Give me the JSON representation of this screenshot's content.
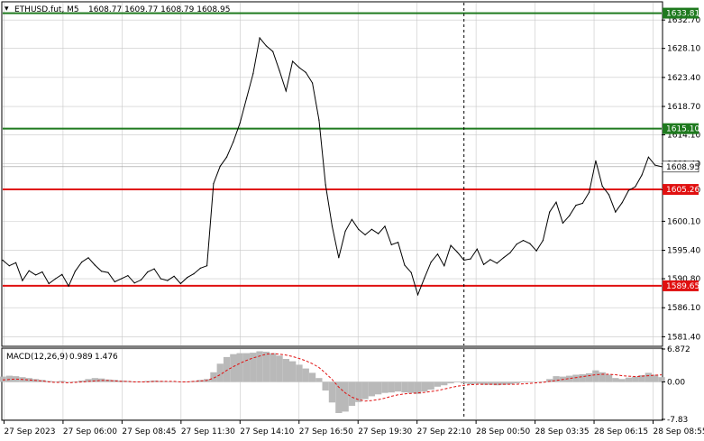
{
  "header": {
    "symbol_label": "ETHUSD.fut, M5",
    "ohlc_label": "1608.77 1609.77 1608.79 1608.95"
  },
  "colors": {
    "price_line": "#000000",
    "resistance": "#1f7a1f",
    "support": "#e01010",
    "grid": "#c8c8c8",
    "axis_text": "#000000",
    "macd_hist": "#b9b9b9",
    "macd_signal": "#e01010",
    "current_price_box": "#ffffff"
  },
  "chart_data": [
    {
      "type": "line",
      "title": "ETHUSD.fut, M5",
      "y_ticks": [
        "1632.70",
        "1628.10",
        "1623.40",
        "1618.70",
        "1614.10",
        "1609.40",
        "1605.20",
        "1600.10",
        "1595.40",
        "1590.80",
        "1586.10",
        "1581.40"
      ],
      "x_tick_labels": [
        "27 Sep 2023",
        "27 Sep 06:00",
        "27 Sep 08:45",
        "27 Sep 11:30",
        "27 Sep 14:10",
        "27 Sep 16:50",
        "27 Sep 19:30",
        "27 Sep 22:10",
        "28 Sep 00:50",
        "28 Sep 03:35",
        "28 Sep 06:15",
        "28 Sep 08:55"
      ],
      "ylim": [
        1580.0,
        1635.5
      ],
      "grid": true,
      "current_price": 1608.95,
      "horizontal_levels": [
        {
          "value": 1633.81,
          "label": "1633.81",
          "color": "green"
        },
        {
          "value": 1615.1,
          "label": "1615.10",
          "color": "green"
        },
        {
          "value": 1605.26,
          "label": "1605.26",
          "color": "red"
        },
        {
          "value": 1589.65,
          "label": "1589.65",
          "color": "red"
        }
      ],
      "vertical_marker_x": 0.7,
      "x": [
        0,
        0.01,
        0.02,
        0.03,
        0.04,
        0.05,
        0.06,
        0.07,
        0.08,
        0.09,
        0.1,
        0.11,
        0.12,
        0.13,
        0.14,
        0.15,
        0.16,
        0.17,
        0.18,
        0.19,
        0.2,
        0.21,
        0.22,
        0.23,
        0.24,
        0.25,
        0.26,
        0.27,
        0.28,
        0.29,
        0.3,
        0.31,
        0.32,
        0.33,
        0.34,
        0.35,
        0.36,
        0.37,
        0.38,
        0.39,
        0.4,
        0.41,
        0.42,
        0.43,
        0.44,
        0.45,
        0.46,
        0.47,
        0.48,
        0.49,
        0.5,
        0.51,
        0.52,
        0.53,
        0.54,
        0.55,
        0.56,
        0.57,
        0.58,
        0.59,
        0.6,
        0.61,
        0.62,
        0.63,
        0.64,
        0.65,
        0.66,
        0.67,
        0.68,
        0.69,
        0.7,
        0.71,
        0.72,
        0.73,
        0.74,
        0.75,
        0.76,
        0.77,
        0.78,
        0.79,
        0.8,
        0.81,
        0.82,
        0.83,
        0.84,
        0.85,
        0.86,
        0.87,
        0.88,
        0.89,
        0.9,
        0.91,
        0.92,
        0.93,
        0.94,
        0.95,
        0.96,
        0.97,
        0.98,
        0.99,
        1.0
      ],
      "series": [
        {
          "name": "price",
          "values": [
            1593.8,
            1592.9,
            1593.4,
            1590.5,
            1592.1,
            1591.4,
            1591.9,
            1590.0,
            1590.8,
            1591.5,
            1589.6,
            1592.0,
            1593.5,
            1594.2,
            1593.0,
            1592.0,
            1591.8,
            1590.3,
            1590.8,
            1591.3,
            1590.1,
            1590.6,
            1591.9,
            1592.4,
            1590.8,
            1590.5,
            1591.2,
            1590.0,
            1591.0,
            1591.6,
            1592.5,
            1592.9,
            1606.2,
            1609.0,
            1610.5,
            1613.0,
            1616.0,
            1620.0,
            1624.0,
            1629.8,
            1628.5,
            1627.6,
            1624.5,
            1621.2,
            1626.0,
            1625.0,
            1624.2,
            1622.5,
            1616.5,
            1606.0,
            1599.3,
            1594.2,
            1598.5,
            1600.4,
            1598.8,
            1597.9,
            1598.8,
            1598.1,
            1599.3,
            1596.3,
            1596.7,
            1593.0,
            1591.8,
            1588.2,
            1590.9,
            1593.5,
            1594.8,
            1592.9,
            1596.2,
            1595.1,
            1593.8,
            1594.0,
            1595.6,
            1593.1,
            1593.9,
            1593.3,
            1594.2,
            1595.0,
            1596.4,
            1597.0,
            1596.5,
            1595.3,
            1597.0,
            1601.6,
            1603.2,
            1599.8,
            1601.0,
            1602.7,
            1603.0,
            1604.8,
            1609.9,
            1605.8,
            1604.4,
            1601.6,
            1603.1,
            1605.1,
            1605.7,
            1607.6,
            1610.5,
            1609.2,
            1608.95
          ]
        }
      ]
    },
    {
      "type": "bar",
      "title": "MACD(12,26,9) 0.989 1.476",
      "indicator_label": "MACD(12,26,9)",
      "macd_value": "0.989",
      "signal_value": "1.476",
      "y_ticks": [
        "6.872",
        "0.00",
        "-7.83"
      ],
      "ylim": [
        -7.83,
        6.872
      ],
      "x": [
        0,
        0.01,
        0.02,
        0.03,
        0.04,
        0.05,
        0.06,
        0.07,
        0.08,
        0.09,
        0.1,
        0.11,
        0.12,
        0.13,
        0.14,
        0.15,
        0.16,
        0.17,
        0.18,
        0.19,
        0.2,
        0.21,
        0.22,
        0.23,
        0.24,
        0.25,
        0.26,
        0.27,
        0.28,
        0.29,
        0.3,
        0.31,
        0.32,
        0.33,
        0.34,
        0.35,
        0.36,
        0.37,
        0.38,
        0.39,
        0.4,
        0.41,
        0.42,
        0.43,
        0.44,
        0.45,
        0.46,
        0.47,
        0.48,
        0.49,
        0.5,
        0.51,
        0.52,
        0.53,
        0.54,
        0.55,
        0.56,
        0.57,
        0.58,
        0.59,
        0.6,
        0.61,
        0.62,
        0.63,
        0.64,
        0.65,
        0.66,
        0.67,
        0.68,
        0.69,
        0.7,
        0.71,
        0.72,
        0.73,
        0.74,
        0.75,
        0.76,
        0.77,
        0.78,
        0.79,
        0.8,
        0.81,
        0.82,
        0.83,
        0.84,
        0.85,
        0.86,
        0.87,
        0.88,
        0.89,
        0.9,
        0.91,
        0.92,
        0.93,
        0.94,
        0.95,
        0.96,
        0.97,
        0.98,
        0.99,
        1.0
      ],
      "series": [
        {
          "name": "MACD",
          "values": [
            1.1,
            1.3,
            1.2,
            1.0,
            0.8,
            0.6,
            0.4,
            0.2,
            0.1,
            0.2,
            0.0,
            0.1,
            0.3,
            0.6,
            0.8,
            0.7,
            0.5,
            0.4,
            0.3,
            0.2,
            0.1,
            0.1,
            0.2,
            0.3,
            0.2,
            0.1,
            0.1,
            0.0,
            0.1,
            0.2,
            0.4,
            0.6,
            2.0,
            3.8,
            5.2,
            5.8,
            6.0,
            6.0,
            6.1,
            6.4,
            6.3,
            6.0,
            5.5,
            4.8,
            4.3,
            3.6,
            2.8,
            1.9,
            0.8,
            -1.8,
            -4.3,
            -6.5,
            -6.2,
            -5.0,
            -4.2,
            -3.6,
            -3.0,
            -2.6,
            -2.3,
            -2.2,
            -2.0,
            -2.2,
            -2.3,
            -2.5,
            -2.0,
            -1.6,
            -1.0,
            -0.7,
            -0.3,
            -0.1,
            -0.3,
            -0.5,
            -0.4,
            -0.6,
            -0.6,
            -0.7,
            -0.6,
            -0.5,
            -0.3,
            -0.1,
            0.1,
            0.0,
            0.1,
            0.6,
            1.2,
            1.1,
            1.3,
            1.5,
            1.6,
            1.8,
            2.4,
            2.0,
            1.5,
            0.8,
            0.6,
            0.9,
            1.1,
            1.4,
            1.9,
            1.5,
            0.99
          ]
        },
        {
          "name": "Signal",
          "values": [
            0.4,
            0.5,
            0.6,
            0.5,
            0.4,
            0.3,
            0.2,
            0.0,
            -0.1,
            -0.1,
            -0.2,
            -0.1,
            0.0,
            0.1,
            0.2,
            0.3,
            0.3,
            0.2,
            0.1,
            0.1,
            0.0,
            0.0,
            0.0,
            0.1,
            0.1,
            0.1,
            0.1,
            0.0,
            0.0,
            0.1,
            0.2,
            0.3,
            0.8,
            1.5,
            2.4,
            3.2,
            3.9,
            4.5,
            5.0,
            5.4,
            5.8,
            5.9,
            5.8,
            5.6,
            5.3,
            4.9,
            4.4,
            3.8,
            3.0,
            1.8,
            0.5,
            -1.1,
            -2.3,
            -3.2,
            -3.7,
            -4.0,
            -3.9,
            -3.7,
            -3.4,
            -3.0,
            -2.7,
            -2.5,
            -2.4,
            -2.3,
            -2.2,
            -2.0,
            -1.8,
            -1.5,
            -1.2,
            -0.9,
            -0.7,
            -0.6,
            -0.5,
            -0.5,
            -0.5,
            -0.5,
            -0.5,
            -0.5,
            -0.5,
            -0.4,
            -0.3,
            -0.2,
            -0.1,
            0.1,
            0.3,
            0.5,
            0.7,
            0.9,
            1.1,
            1.3,
            1.5,
            1.6,
            1.6,
            1.5,
            1.3,
            1.2,
            1.1,
            1.2,
            1.3,
            1.4,
            1.476
          ]
        }
      ]
    }
  ]
}
